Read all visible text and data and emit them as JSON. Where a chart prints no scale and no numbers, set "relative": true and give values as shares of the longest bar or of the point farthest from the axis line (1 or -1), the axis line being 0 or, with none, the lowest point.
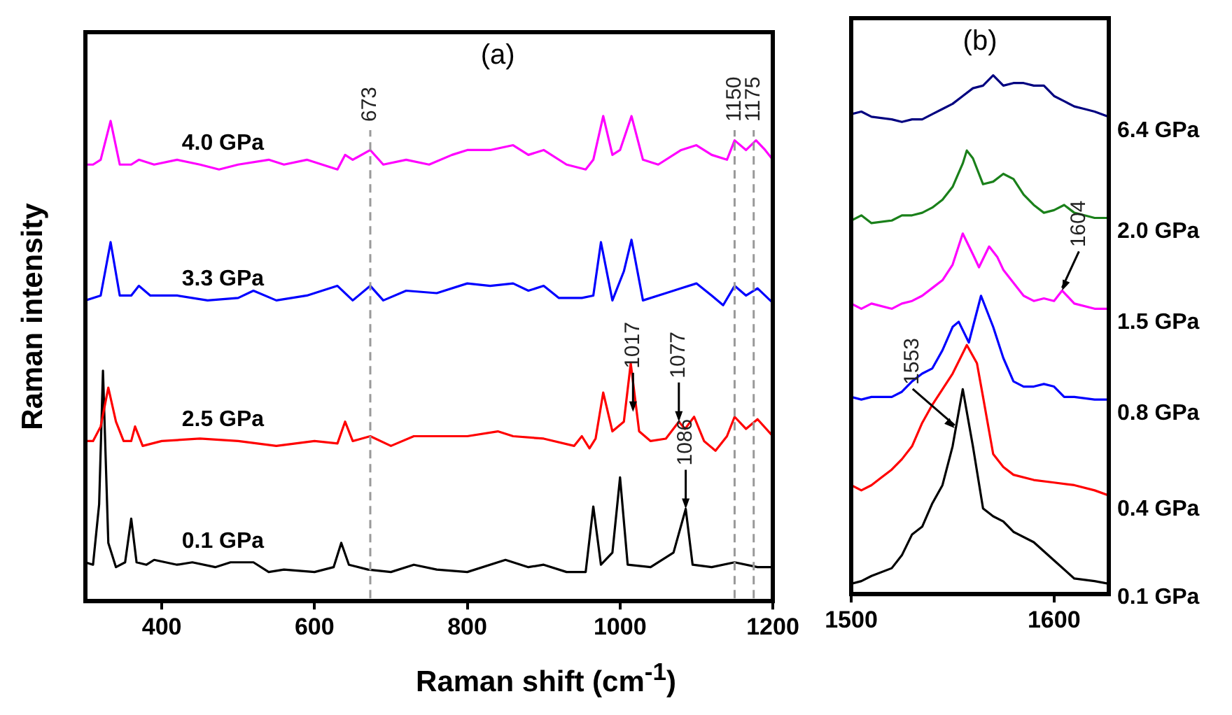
{
  "chart_data": [
    {
      "type": "line",
      "title": "(a)",
      "xlabel": "Raman shift (cm$^{-1}$)",
      "ylabel": "Raman intensity",
      "relative": true,
      "tick_labels": "x",
      "xlim": [
        300,
        1200
      ],
      "xticks": [
        400,
        600,
        800,
        1000,
        1200
      ],
      "series": [
        {
          "name": "4.0 GPa",
          "color": "#ff00ff",
          "x": [
            300,
            310,
            320,
            333,
            345,
            360,
            370,
            390,
            420,
            450,
            475,
            500,
            540,
            560,
            590,
            630,
            640,
            650,
            673,
            690,
            720,
            750,
            780,
            800,
            830,
            860,
            880,
            900,
            930,
            955,
            965,
            978,
            990,
            1000,
            1015,
            1030,
            1050,
            1080,
            1100,
            1120,
            1140,
            1150,
            1165,
            1178,
            1190,
            1200
          ],
          "values": [
            0.9,
            0.9,
            0.91,
            0.99,
            0.9,
            0.9,
            0.91,
            0.9,
            0.91,
            0.9,
            0.89,
            0.9,
            0.91,
            0.9,
            0.91,
            0.89,
            0.92,
            0.91,
            0.93,
            0.9,
            0.91,
            0.9,
            0.92,
            0.93,
            0.93,
            0.94,
            0.92,
            0.93,
            0.9,
            0.89,
            0.91,
            1.0,
            0.92,
            0.93,
            1.0,
            0.91,
            0.9,
            0.93,
            0.94,
            0.92,
            0.91,
            0.95,
            0.93,
            0.95,
            0.93,
            0.91
          ]
        },
        {
          "name": "3.3 GPa",
          "color": "#0000ff",
          "x": [
            300,
            320,
            333,
            345,
            360,
            370,
            385,
            420,
            460,
            500,
            520,
            550,
            590,
            630,
            650,
            673,
            690,
            720,
            760,
            800,
            830,
            860,
            880,
            900,
            920,
            950,
            965,
            975,
            990,
            1005,
            1015,
            1030,
            1060,
            1080,
            1100,
            1120,
            1135,
            1150,
            1165,
            1180,
            1200
          ],
          "values": [
            0.62,
            0.63,
            0.74,
            0.63,
            0.63,
            0.65,
            0.63,
            0.63,
            0.62,
            0.625,
            0.64,
            0.62,
            0.63,
            0.65,
            0.62,
            0.65,
            0.62,
            0.64,
            0.635,
            0.655,
            0.65,
            0.655,
            0.64,
            0.65,
            0.625,
            0.625,
            0.63,
            0.74,
            0.62,
            0.68,
            0.745,
            0.62,
            0.635,
            0.645,
            0.655,
            0.63,
            0.61,
            0.65,
            0.63,
            0.645,
            0.615
          ]
        },
        {
          "name": "2.5 GPa",
          "color": "#ff0000",
          "x": [
            300,
            310,
            320,
            330,
            340,
            350,
            360,
            365,
            375,
            400,
            450,
            500,
            550,
            600,
            630,
            640,
            650,
            673,
            700,
            730,
            760,
            800,
            840,
            860,
            900,
            940,
            950,
            960,
            968,
            978,
            990,
            1005,
            1014,
            1025,
            1040,
            1060,
            1077,
            1085,
            1097,
            1110,
            1125,
            1140,
            1150,
            1165,
            1180,
            1200
          ],
          "values": [
            0.33,
            0.33,
            0.36,
            0.44,
            0.37,
            0.33,
            0.33,
            0.36,
            0.32,
            0.33,
            0.335,
            0.33,
            0.32,
            0.33,
            0.325,
            0.37,
            0.33,
            0.34,
            0.32,
            0.34,
            0.34,
            0.34,
            0.35,
            0.34,
            0.335,
            0.32,
            0.34,
            0.315,
            0.335,
            0.43,
            0.35,
            0.37,
            0.49,
            0.35,
            0.33,
            0.335,
            0.37,
            0.355,
            0.38,
            0.33,
            0.31,
            0.34,
            0.38,
            0.355,
            0.375,
            0.34
          ]
        },
        {
          "name": "0.1 GPa",
          "color": "#000000",
          "x": [
            300,
            310,
            318,
            323,
            330,
            340,
            352,
            360,
            367,
            380,
            390,
            420,
            440,
            470,
            490,
            520,
            540,
            560,
            600,
            625,
            635,
            645,
            670,
            700,
            730,
            760,
            800,
            850,
            880,
            900,
            930,
            955,
            965,
            975,
            990,
            1000,
            1010,
            1040,
            1070,
            1086,
            1095,
            1120,
            1150,
            1180,
            1200
          ],
          "values": [
            0.08,
            0.075,
            0.2,
            0.475,
            0.12,
            0.07,
            0.08,
            0.17,
            0.08,
            0.075,
            0.085,
            0.075,
            0.08,
            0.07,
            0.08,
            0.08,
            0.06,
            0.065,
            0.06,
            0.07,
            0.12,
            0.075,
            0.065,
            0.06,
            0.075,
            0.065,
            0.06,
            0.085,
            0.07,
            0.075,
            0.06,
            0.06,
            0.195,
            0.075,
            0.1,
            0.255,
            0.075,
            0.07,
            0.1,
            0.19,
            0.075,
            0.07,
            0.08,
            0.07,
            0.07
          ]
        }
      ],
      "ref_lines": [
        {
          "axis": "x",
          "value": 673,
          "label": "673",
          "color": "#999999",
          "line_style": "dashed"
        },
        {
          "axis": "x",
          "value": 1150,
          "label": "1150",
          "color": "#999999",
          "line_style": "dashed"
        },
        {
          "axis": "x",
          "value": 1175,
          "label": "1175",
          "color": "#999999",
          "line_style": "dashed"
        }
      ],
      "annotations": [
        {
          "text": "1017",
          "x": 1017,
          "y": 0.39
        },
        {
          "text": "1077",
          "x": 1077,
          "y": 0.37
        },
        {
          "text": "1086",
          "x": 1086,
          "y": 0.19
        }
      ]
    },
    {
      "type": "line",
      "title": "(b)",
      "relative": true,
      "tick_labels": "x",
      "xlim": [
        1500,
        1627
      ],
      "xticks": [
        1500,
        1600
      ],
      "series": [
        {
          "name": "6.4 GPa",
          "color": "#000080",
          "x": [
            1500,
            1505,
            1510,
            1520,
            1525,
            1530,
            1535,
            1540,
            1545,
            1550,
            1555,
            1560,
            1565,
            1570,
            1575,
            1580,
            1585,
            1590,
            1595,
            1600,
            1605,
            1610,
            1615,
            1620,
            1627
          ],
          "values": [
            0.925,
            0.93,
            0.92,
            0.915,
            0.91,
            0.915,
            0.915,
            0.925,
            0.935,
            0.945,
            0.96,
            0.975,
            0.98,
            1.0,
            0.98,
            0.985,
            0.985,
            0.98,
            0.98,
            0.96,
            0.95,
            0.94,
            0.935,
            0.93,
            0.92
          ]
        },
        {
          "name": "2.0 GPa",
          "color": "#1a801a",
          "x": [
            1500,
            1505,
            1510,
            1520,
            1525,
            1530,
            1535,
            1540,
            1545,
            1550,
            1555,
            1557,
            1560,
            1565,
            1570,
            1575,
            1580,
            1585,
            1590,
            1595,
            1600,
            1605,
            1610,
            1615,
            1620,
            1627
          ],
          "values": [
            0.72,
            0.73,
            0.715,
            0.72,
            0.73,
            0.73,
            0.735,
            0.745,
            0.76,
            0.785,
            0.83,
            0.855,
            0.84,
            0.79,
            0.795,
            0.81,
            0.8,
            0.77,
            0.75,
            0.735,
            0.74,
            0.75,
            0.735,
            0.73,
            0.725,
            0.725
          ]
        },
        {
          "name": "1.5 GPa",
          "color": "#ff00ff",
          "x": [
            1500,
            1505,
            1510,
            1520,
            1525,
            1530,
            1535,
            1540,
            1545,
            1550,
            1555,
            1560,
            1563,
            1568,
            1572,
            1575,
            1580,
            1585,
            1590,
            1595,
            1600,
            1604,
            1610,
            1620,
            1627
          ],
          "values": [
            0.56,
            0.55,
            0.56,
            0.55,
            0.56,
            0.565,
            0.575,
            0.59,
            0.605,
            0.635,
            0.695,
            0.655,
            0.63,
            0.67,
            0.65,
            0.625,
            0.6,
            0.575,
            0.565,
            0.57,
            0.565,
            0.585,
            0.56,
            0.55,
            0.55
          ]
        },
        {
          "name": "0.8 GPa",
          "color": "#0000ff",
          "x": [
            1500,
            1505,
            1510,
            1520,
            1525,
            1530,
            1535,
            1540,
            1545,
            1550,
            1553,
            1558,
            1564,
            1570,
            1575,
            1580,
            1585,
            1590,
            1595,
            1600,
            1605,
            1610,
            1620,
            1627
          ],
          "values": [
            0.38,
            0.375,
            0.38,
            0.38,
            0.39,
            0.41,
            0.425,
            0.435,
            0.47,
            0.515,
            0.525,
            0.485,
            0.575,
            0.515,
            0.455,
            0.41,
            0.4,
            0.4,
            0.405,
            0.4,
            0.38,
            0.38,
            0.375,
            0.375
          ]
        },
        {
          "name": "0.4 GPa",
          "color": "#ff0000",
          "x": [
            1500,
            1505,
            1510,
            1515,
            1520,
            1525,
            1530,
            1535,
            1540,
            1545,
            1550,
            1557,
            1562,
            1565,
            1570,
            1575,
            1580,
            1590,
            1600,
            1610,
            1620,
            1627
          ],
          "values": [
            0.21,
            0.2,
            0.21,
            0.225,
            0.24,
            0.26,
            0.285,
            0.33,
            0.365,
            0.395,
            0.425,
            0.48,
            0.445,
            0.38,
            0.27,
            0.245,
            0.23,
            0.22,
            0.215,
            0.21,
            0.2,
            0.19
          ]
        },
        {
          "name": "0.1 GPa",
          "color": "#000000",
          "x": [
            1500,
            1505,
            1510,
            1520,
            1525,
            1530,
            1535,
            1540,
            1545,
            1550,
            1555,
            1560,
            1565,
            1570,
            1575,
            1580,
            1590,
            1600,
            1610,
            1620,
            1627
          ],
          "values": [
            0.02,
            0.025,
            0.035,
            0.05,
            0.075,
            0.115,
            0.13,
            0.175,
            0.21,
            0.285,
            0.395,
            0.285,
            0.165,
            0.15,
            0.14,
            0.12,
            0.1,
            0.065,
            0.03,
            0.025,
            0.02
          ]
        }
      ],
      "annotations": [
        {
          "text": "1553",
          "x": 1551,
          "y": 0.32
        },
        {
          "text": "1604",
          "x": 1604,
          "y": 0.585
        }
      ]
    }
  ]
}
